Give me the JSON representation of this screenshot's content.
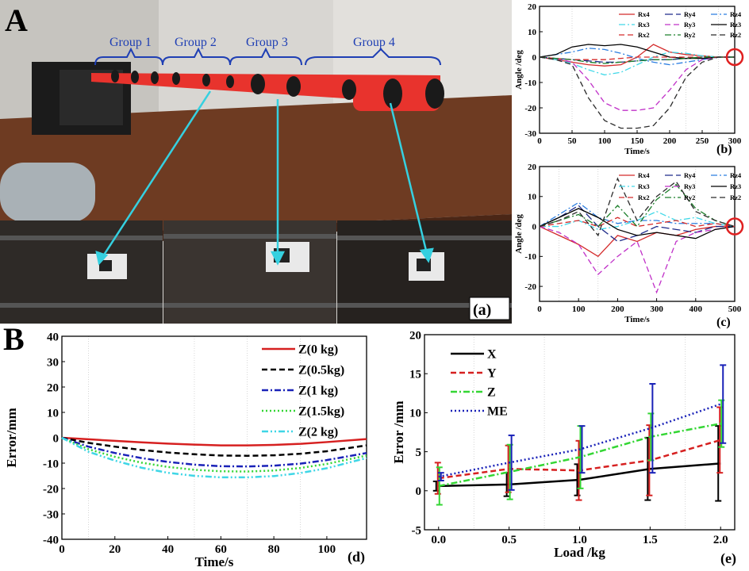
{
  "figure": {
    "panel_A": "A",
    "panel_B": "B"
  },
  "photo": {
    "label": "(a)",
    "groups": [
      "Group 1",
      "Group 2",
      "Group 3",
      "Group 4"
    ],
    "colors": {
      "tube": "#e8332d",
      "arrow": "#35d0e0",
      "group_text": "#1f3fb4"
    }
  },
  "chart_data": [
    {
      "id": "b",
      "panel_label": "(b)",
      "type": "line",
      "xlabel": "Time/s",
      "ylabel": "Angle /deg",
      "xlim": [
        0,
        300
      ],
      "ylim": [
        -30,
        20
      ],
      "xticks": [
        0,
        50,
        100,
        150,
        200,
        250,
        300
      ],
      "yticks": [
        -30,
        -20,
        -10,
        0,
        10,
        20
      ],
      "grid": false,
      "legend": "top-right, three columns",
      "x": [
        0,
        25,
        50,
        75,
        100,
        125,
        150,
        175,
        200,
        225,
        250,
        275,
        300
      ],
      "series": [
        {
          "name": "Rx4",
          "color": "#d42a2a",
          "dash": "solid",
          "values": [
            0,
            -1,
            -2,
            -3,
            -3.5,
            -3,
            0,
            5,
            2,
            1,
            0.5,
            0,
            0
          ]
        },
        {
          "name": "Ry4",
          "color": "#1e2b8a",
          "dash": "long",
          "values": [
            0,
            -0.5,
            -1,
            -1.5,
            -2,
            -2,
            -1.5,
            -1,
            -1,
            -0.5,
            0,
            0,
            0
          ]
        },
        {
          "name": "Rz4",
          "color": "#2a7de0",
          "dash": "dashdot",
          "values": [
            0,
            1,
            2,
            3.5,
            3,
            1.5,
            -0.5,
            -2,
            -3,
            -2,
            -1,
            0,
            0
          ]
        },
        {
          "name": "Rx3",
          "color": "#40d8e8",
          "dash": "dashdot",
          "values": [
            0,
            -1,
            -2.5,
            -5,
            -7,
            -6,
            -3,
            0,
            2,
            1.5,
            0.5,
            0,
            0
          ]
        },
        {
          "name": "Ry3",
          "color": "#c030c8",
          "dash": "dashed",
          "values": [
            0,
            -0.5,
            -2,
            -9,
            -18,
            -21,
            -21,
            -20,
            -13,
            -5,
            -1,
            0,
            0
          ]
        },
        {
          "name": "Rz3",
          "color": "#000000",
          "dash": "solid",
          "values": [
            0,
            1,
            4,
            5,
            4.5,
            5,
            4,
            2,
            0,
            -0.5,
            -0.5,
            0,
            0
          ]
        },
        {
          "name": "Rx2",
          "color": "#d42a2a",
          "dash": "dashed",
          "values": [
            0,
            -0.5,
            -1,
            -1,
            -1,
            -0.5,
            0,
            0,
            0,
            0,
            0,
            0,
            0
          ]
        },
        {
          "name": "Ry2",
          "color": "#1c7f2a",
          "dash": "dashdot",
          "values": [
            0,
            -0.5,
            -1,
            -2,
            -2.5,
            -2,
            -1.5,
            -1,
            -1,
            -0.5,
            0,
            0,
            0
          ]
        },
        {
          "name": "Rz2",
          "color": "#2b2b2b",
          "dash": "dashed",
          "values": [
            0,
            -1,
            -3,
            -16,
            -25,
            -28,
            -28,
            -27,
            -20,
            -8,
            -2,
            0,
            0
          ]
        }
      ]
    },
    {
      "id": "c",
      "panel_label": "(c)",
      "type": "line",
      "xlabel": "Time/s",
      "ylabel": "Angle /deg",
      "xlim": [
        0,
        500
      ],
      "ylim": [
        -25,
        20
      ],
      "xticks": [
        0,
        100,
        200,
        300,
        400,
        500
      ],
      "yticks": [
        -20,
        -10,
        0,
        10,
        20
      ],
      "grid": false,
      "legend": "top-right, three columns",
      "x": [
        0,
        50,
        100,
        150,
        200,
        250,
        300,
        350,
        400,
        450,
        500
      ],
      "series": [
        {
          "name": "Rx4",
          "color": "#d42a2a",
          "dash": "solid",
          "values": [
            0,
            -3,
            -6,
            -10,
            -3,
            -5,
            -2,
            -3,
            -1,
            0,
            0
          ]
        },
        {
          "name": "Ry4",
          "color": "#1e2b8a",
          "dash": "long",
          "values": [
            0,
            3,
            7,
            0,
            -5,
            -3,
            0,
            -1,
            -2,
            0,
            0
          ]
        },
        {
          "name": "Rz4",
          "color": "#2a7de0",
          "dash": "dashdot",
          "values": [
            0,
            4,
            8,
            3,
            1,
            2,
            2,
            1,
            1,
            1,
            0
          ]
        },
        {
          "name": "Rx3",
          "color": "#40d8e8",
          "dash": "dashdot",
          "values": [
            0,
            0,
            2,
            -1,
            0,
            2,
            5,
            2,
            3,
            1,
            0
          ]
        },
        {
          "name": "Ry3",
          "color": "#c030c8",
          "dash": "dashed",
          "values": [
            0,
            -2,
            -6,
            -16,
            -10,
            -5,
            -22,
            -5,
            -2,
            -1,
            0
          ]
        },
        {
          "name": "Rz3",
          "color": "#000000",
          "dash": "solid",
          "values": [
            0,
            3,
            6,
            3,
            -1,
            -3,
            -2,
            -3,
            -4,
            -1,
            0
          ]
        },
        {
          "name": "Rx2",
          "color": "#d42a2a",
          "dash": "dashed",
          "values": [
            0,
            1,
            2,
            0,
            3,
            0,
            1,
            2,
            0,
            1,
            0
          ]
        },
        {
          "name": "Ry2",
          "color": "#1c7f2a",
          "dash": "dashdot",
          "values": [
            0,
            2,
            4,
            0,
            7,
            0,
            9,
            14,
            6,
            2,
            0
          ]
        },
        {
          "name": "Rz2",
          "color": "#2b2b2b",
          "dash": "dashed",
          "values": [
            0,
            2,
            5,
            -3,
            16,
            2,
            10,
            15,
            5,
            2,
            0
          ]
        }
      ]
    },
    {
      "id": "d",
      "panel_label": "(d)",
      "type": "line",
      "xlabel": "Time/s",
      "ylabel": "Error/mm",
      "xlim": [
        0,
        115
      ],
      "ylim": [
        -40,
        40
      ],
      "xticks": [
        0,
        20,
        40,
        60,
        80,
        100
      ],
      "yticks": [
        -40,
        -30,
        -20,
        -10,
        0,
        10,
        20,
        30,
        40
      ],
      "grid": false,
      "legend": "top-right",
      "x": [
        0,
        10,
        20,
        30,
        40,
        50,
        60,
        70,
        80,
        90,
        100,
        115
      ],
      "series": [
        {
          "name": "Z(0 kg)",
          "color": "#d62020",
          "dash": "solid",
          "values": [
            0,
            -0.6,
            -1.2,
            -1.8,
            -2.3,
            -2.7,
            -3.0,
            -3.0,
            -2.8,
            -2.4,
            -1.7,
            -0.5
          ]
        },
        {
          "name": "Z(0.5kg)",
          "color": "#000000",
          "dash": "dashed",
          "values": [
            0,
            -2.0,
            -3.5,
            -4.8,
            -5.8,
            -6.5,
            -7.0,
            -7.1,
            -6.9,
            -6.3,
            -5.3,
            -3.0
          ]
        },
        {
          "name": "Z(1 kg)",
          "color": "#1a22b8",
          "dash": "dashdot",
          "values": [
            0,
            -3.5,
            -6.0,
            -8.0,
            -9.5,
            -10.6,
            -11.2,
            -11.3,
            -11.0,
            -10.2,
            -8.8,
            -6.0
          ]
        },
        {
          "name": "Z(1.5kg)",
          "color": "#34d634",
          "dash": "dotted",
          "values": [
            0,
            -4.5,
            -7.5,
            -9.8,
            -11.5,
            -12.6,
            -13.2,
            -13.3,
            -12.9,
            -11.9,
            -10.3,
            -7.0
          ]
        },
        {
          "name": "Z(2 kg)",
          "color": "#3fd6e6",
          "dash": "dashdotdot",
          "values": [
            0,
            -5.5,
            -9.0,
            -11.8,
            -13.8,
            -15.0,
            -15.6,
            -15.6,
            -15.1,
            -13.9,
            -12.0,
            -8.0
          ]
        }
      ]
    },
    {
      "id": "e",
      "panel_label": "(e)",
      "type": "line",
      "xlabel": "Load /kg",
      "ylabel": "Error /mm",
      "xlim": [
        -0.1,
        2.1
      ],
      "ylim": [
        -5,
        20
      ],
      "xticks": [
        0.0,
        0.5,
        1.0,
        1.5,
        2.0
      ],
      "xtick_labels": [
        "0.0",
        "0.5",
        "1.0",
        "1.5",
        "2.0"
      ],
      "yticks": [
        -5,
        0,
        5,
        10,
        15,
        20
      ],
      "grid": false,
      "legend": "top-left",
      "x": [
        0.0,
        0.5,
        1.0,
        1.5,
        2.0
      ],
      "series": [
        {
          "name": "X",
          "color": "#000000",
          "dash": "solid",
          "values": [
            0.6,
            0.8,
            1.4,
            2.8,
            3.5
          ],
          "err": [
            0.6,
            1.5,
            2.0,
            4.0,
            4.8
          ]
        },
        {
          "name": "Y",
          "color": "#d62020",
          "dash": "dashed",
          "values": [
            1.6,
            2.8,
            2.6,
            3.9,
            6.5
          ],
          "err": [
            2.0,
            3.0,
            3.8,
            4.5,
            4.2
          ]
        },
        {
          "name": "Z",
          "color": "#34d634",
          "dash": "dashdot",
          "values": [
            0.6,
            2.4,
            4.3,
            6.9,
            8.6
          ],
          "err": [
            2.4,
            3.5,
            4.0,
            3.0,
            3.0
          ]
        },
        {
          "name": "ME",
          "color": "#1a22b8",
          "dash": "dotted",
          "values": [
            1.8,
            3.6,
            5.3,
            8.0,
            11.1
          ],
          "err": [
            0.5,
            3.5,
            3.0,
            5.7,
            5.0
          ]
        }
      ]
    }
  ]
}
